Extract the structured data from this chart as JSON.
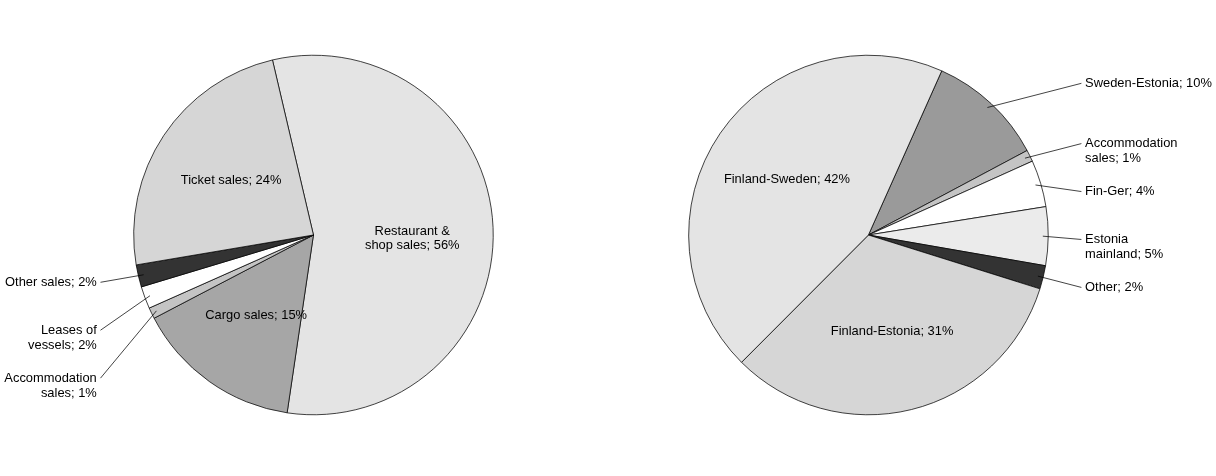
{
  "chart_data": [
    {
      "type": "pie",
      "categories": [
        "Restaurant & shop sales",
        "Cargo sales",
        "Accommodation sales",
        "Leases of vessels",
        "Other sales",
        "Ticket sales"
      ],
      "values": [
        56,
        15,
        1,
        2,
        2,
        24
      ],
      "value_labels": [
        "56%",
        "15%",
        "1%",
        "2%",
        "2%",
        "24%"
      ],
      "colors": [
        "#e4e4e4",
        "#a6a6a6",
        "#c4c4c4",
        "#ffffff",
        "#333333",
        "#d6d6d6"
      ]
    },
    {
      "type": "pie",
      "categories": [
        "Sweden-Estonia",
        "Accommodation sales",
        "Fin-Ger",
        "Estonia mainland",
        "Other",
        "Finland-Estonia",
        "Finland-Sweden"
      ],
      "values": [
        10,
        1,
        4,
        5,
        2,
        31,
        42
      ],
      "value_labels": [
        "10%",
        "1%",
        "4%",
        "5%",
        "2%",
        "31%",
        "42%"
      ],
      "colors": [
        "#9a9a9a",
        "#c4c4c4",
        "#ffffff",
        "#ebebeb",
        "#333333",
        "#d6d6d6",
        "#e4e4e4"
      ]
    }
  ]
}
